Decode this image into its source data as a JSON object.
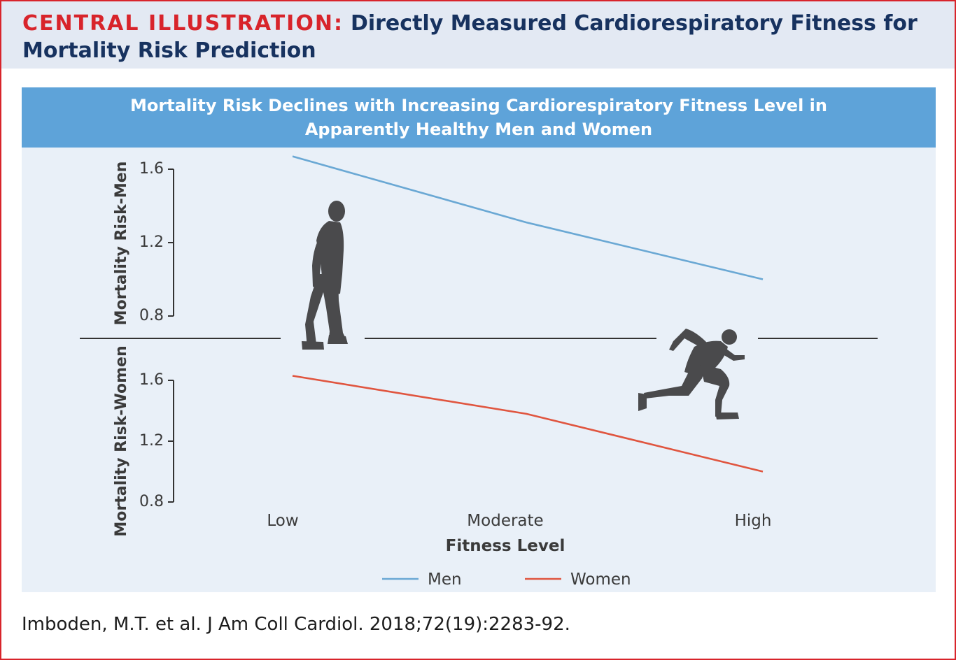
{
  "header": {
    "label": "CENTRAL ILLUSTRATION:",
    "title": "Directly Measured Cardiorespiratory Fitness for Mortality Risk Prediction"
  },
  "colors": {
    "accent_red": "#d8242b",
    "header_bg": "#e3e9f3",
    "banner_bg": "#5ea3d9",
    "panel_bg": "#e9f0f8",
    "men_line": "#6aa8d4",
    "women_line": "#e0553f",
    "silhouette": "#4a4a4c"
  },
  "chart_data": {
    "type": "line",
    "title": "Mortality Risk Declines with Increasing Cardiorespiratory Fitness Level in Apparently Healthy Men and Women",
    "xlabel": "Fitness Level",
    "categories": [
      "Low",
      "Moderate",
      "High"
    ],
    "panels": [
      {
        "ylabel": "Mortality Risk-Men",
        "yticks": [
          "1.6",
          "1.2",
          "0.8"
        ],
        "ylim": [
          0.8,
          1.6
        ],
        "series": [
          {
            "name": "Men",
            "values": [
              1.67,
              1.31,
              1.0
            ]
          }
        ]
      },
      {
        "ylabel": "Mortality Risk-Women",
        "yticks": [
          "1.6",
          "1.2",
          "0.8"
        ],
        "ylim": [
          0.8,
          1.6
        ],
        "series": [
          {
            "name": "Women",
            "values": [
              1.63,
              1.38,
              1.0
            ]
          }
        ]
      }
    ],
    "legend": {
      "position": "bottom-center",
      "entries": [
        {
          "name": "Men",
          "color": "#6aa8d4"
        },
        {
          "name": "Women",
          "color": "#e0553f"
        }
      ]
    },
    "annotations": [
      "walking-person-icon",
      "sprinting-person-icon"
    ]
  },
  "citation": "Imboden, M.T. et al. J Am Coll Cardiol. 2018;72(19):2283-92."
}
